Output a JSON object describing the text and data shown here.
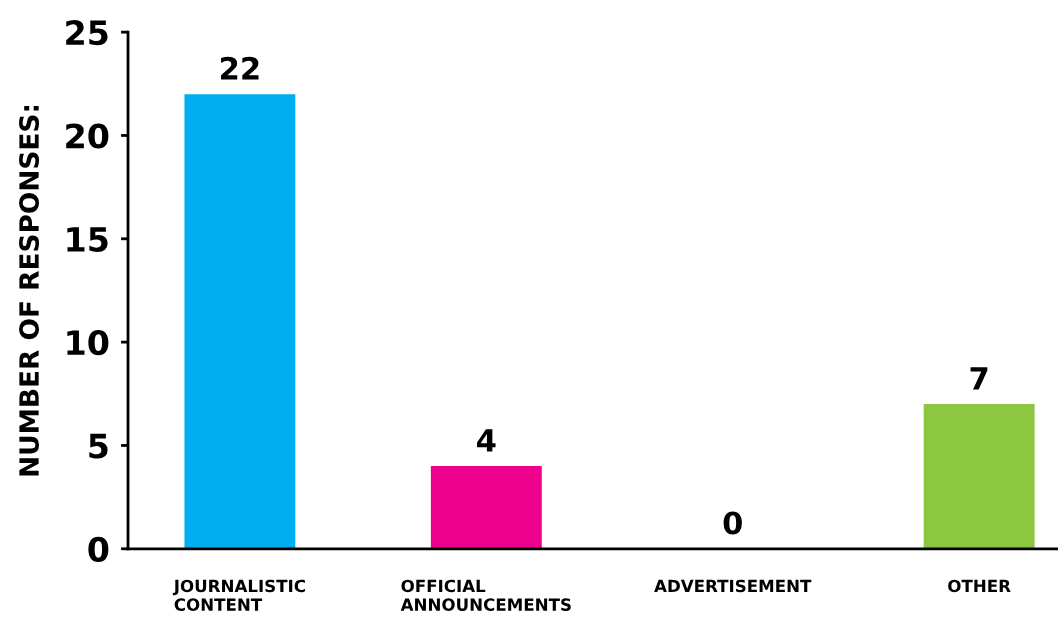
{
  "chart_data": {
    "type": "bar",
    "ylabel": "NUMBER OF RESPONSES:",
    "categories": [
      "JOURNALISTIC\nCONTENT",
      "OFFICIAL\nANNOUNCEMENTS",
      "ADVERTISEMENT",
      "OTHER"
    ],
    "values": [
      22,
      4,
      0,
      7
    ],
    "colors": [
      "#00aeef",
      "#ec008c",
      "#ec008c",
      "#8dc63f"
    ],
    "ylim": [
      0,
      25
    ],
    "yticks": [
      0,
      5,
      10,
      15,
      20,
      25
    ],
    "grid": false,
    "legend": false,
    "data_labels": true
  }
}
